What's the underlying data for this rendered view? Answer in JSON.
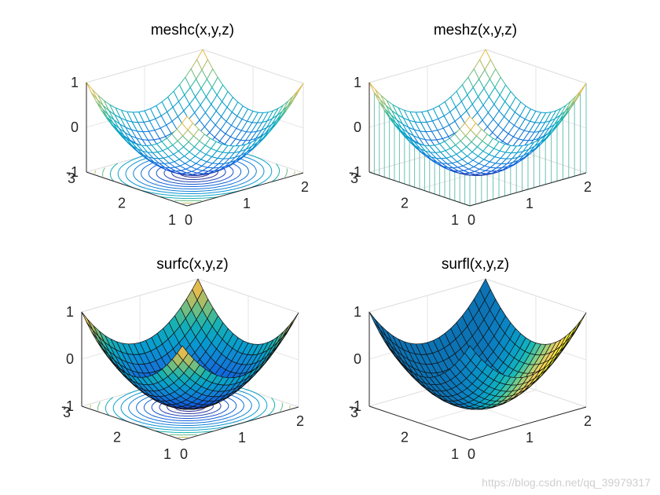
{
  "watermark": "https://blog.csdn.net/qq_39979317",
  "chart_data": [
    {
      "type": "mesh",
      "function": "z = (x-1)^2 + (y-2)^2 - 1",
      "title": "meshc(x,y,z)",
      "x_range": [
        0,
        2
      ],
      "y_range": [
        1,
        3
      ],
      "z_range": [
        -1,
        1
      ],
      "x_ticks": [
        "0",
        "1",
        "2"
      ],
      "y_ticks": [
        "1",
        "2",
        "3"
      ],
      "z_ticks": [
        "-1",
        "0",
        "1"
      ],
      "grid": "on",
      "contour": "on"
    },
    {
      "type": "mesh",
      "function": "z = (x-1)^2 + (y-2)^2 - 1",
      "title": "meshz(x,y,z)",
      "x_range": [
        0,
        2
      ],
      "y_range": [
        1,
        3
      ],
      "z_range": [
        -1,
        1
      ],
      "x_ticks": [
        "0",
        "1",
        "2"
      ],
      "y_ticks": [
        "1",
        "2",
        "3"
      ],
      "z_ticks": [
        "-1",
        "0",
        "1"
      ],
      "grid": "on",
      "curtain": "on"
    },
    {
      "type": "surface",
      "function": "z = (x-1)^2 + (y-2)^2 - 1",
      "title": "surfc(x,y,z)",
      "x_range": [
        0,
        2
      ],
      "y_range": [
        1,
        3
      ],
      "z_range": [
        -1,
        1
      ],
      "x_ticks": [
        "0",
        "1",
        "2"
      ],
      "y_ticks": [
        "1",
        "2",
        "3"
      ],
      "z_ticks": [
        "-1",
        "0",
        "1"
      ],
      "grid": "on",
      "contour": "on"
    },
    {
      "type": "surface",
      "function": "z = (x-1)^2 + (y-2)^2 - 1",
      "title": "surfl(x,y,z)",
      "x_range": [
        0,
        2
      ],
      "y_range": [
        1,
        3
      ],
      "z_range": [
        -1,
        1
      ],
      "x_ticks": [
        "0",
        "1",
        "2"
      ],
      "y_ticks": [
        "1",
        "2",
        "3"
      ],
      "z_ticks": [
        "-1",
        "0",
        "1"
      ],
      "grid": "on",
      "lighting": "on"
    }
  ]
}
